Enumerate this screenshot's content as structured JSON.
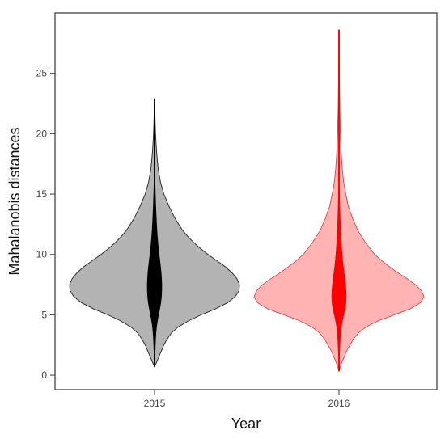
{
  "chart_data": {
    "type": "violin",
    "title": "",
    "xlabel": "Year",
    "ylabel": "Mahalanobis distances",
    "categories": [
      "2015",
      "2016"
    ],
    "ylim": [
      -1.2,
      30
    ],
    "yticks": [
      0,
      5,
      10,
      15,
      20,
      25
    ],
    "ytick_labels": [
      "0",
      "5",
      "10",
      "15",
      "20",
      "25"
    ],
    "grid": false,
    "legend": "none",
    "series": [
      {
        "category": "2015",
        "fill": "#b3b3b3",
        "stroke": "#222222",
        "core_color": "#000000",
        "min": 0.7,
        "max": 22.9,
        "density": [
          [
            0.7,
            0.0
          ],
          [
            1.0,
            0.02
          ],
          [
            1.5,
            0.05
          ],
          [
            2.0,
            0.08
          ],
          [
            2.5,
            0.11
          ],
          [
            3.0,
            0.15
          ],
          [
            3.5,
            0.2
          ],
          [
            4.0,
            0.28
          ],
          [
            4.5,
            0.4
          ],
          [
            5.0,
            0.55
          ],
          [
            5.5,
            0.72
          ],
          [
            6.0,
            0.86
          ],
          [
            6.5,
            0.95
          ],
          [
            7.0,
            0.995
          ],
          [
            7.5,
            1.0
          ],
          [
            8.0,
            0.97
          ],
          [
            8.5,
            0.91
          ],
          [
            9.0,
            0.83
          ],
          [
            9.5,
            0.73
          ],
          [
            10.0,
            0.63
          ],
          [
            10.5,
            0.54
          ],
          [
            11.0,
            0.46
          ],
          [
            11.5,
            0.39
          ],
          [
            12.0,
            0.33
          ],
          [
            13.0,
            0.24
          ],
          [
            14.0,
            0.17
          ],
          [
            15.0,
            0.11
          ],
          [
            16.0,
            0.07
          ],
          [
            17.0,
            0.045
          ],
          [
            18.0,
            0.03
          ],
          [
            19.0,
            0.02
          ],
          [
            20.0,
            0.012
          ],
          [
            21.0,
            0.007
          ],
          [
            22.0,
            0.004
          ],
          [
            22.9,
            0.0
          ]
        ]
      },
      {
        "category": "2016",
        "fill": "#ffb3b3",
        "stroke": "#dd4444",
        "core_color": "#ff0000",
        "min": 0.35,
        "max": 28.6,
        "density": [
          [
            0.35,
            0.0
          ],
          [
            0.8,
            0.02
          ],
          [
            1.5,
            0.06
          ],
          [
            2.0,
            0.09
          ],
          [
            2.5,
            0.13
          ],
          [
            3.0,
            0.17
          ],
          [
            3.5,
            0.23
          ],
          [
            4.0,
            0.32
          ],
          [
            4.5,
            0.46
          ],
          [
            5.0,
            0.65
          ],
          [
            5.5,
            0.84
          ],
          [
            6.0,
            0.96
          ],
          [
            6.5,
            1.0
          ],
          [
            7.0,
            0.97
          ],
          [
            7.5,
            0.9
          ],
          [
            8.0,
            0.8
          ],
          [
            8.5,
            0.69
          ],
          [
            9.0,
            0.59
          ],
          [
            9.5,
            0.5
          ],
          [
            10.0,
            0.42
          ],
          [
            11.0,
            0.31
          ],
          [
            12.0,
            0.22
          ],
          [
            13.0,
            0.16
          ],
          [
            14.0,
            0.11
          ],
          [
            15.0,
            0.08
          ],
          [
            16.0,
            0.055
          ],
          [
            17.0,
            0.04
          ],
          [
            18.0,
            0.03
          ],
          [
            19.0,
            0.022
          ],
          [
            20.0,
            0.016
          ],
          [
            22.0,
            0.01
          ],
          [
            24.0,
            0.006
          ],
          [
            26.0,
            0.003
          ],
          [
            28.6,
            0.0
          ]
        ]
      }
    ]
  }
}
